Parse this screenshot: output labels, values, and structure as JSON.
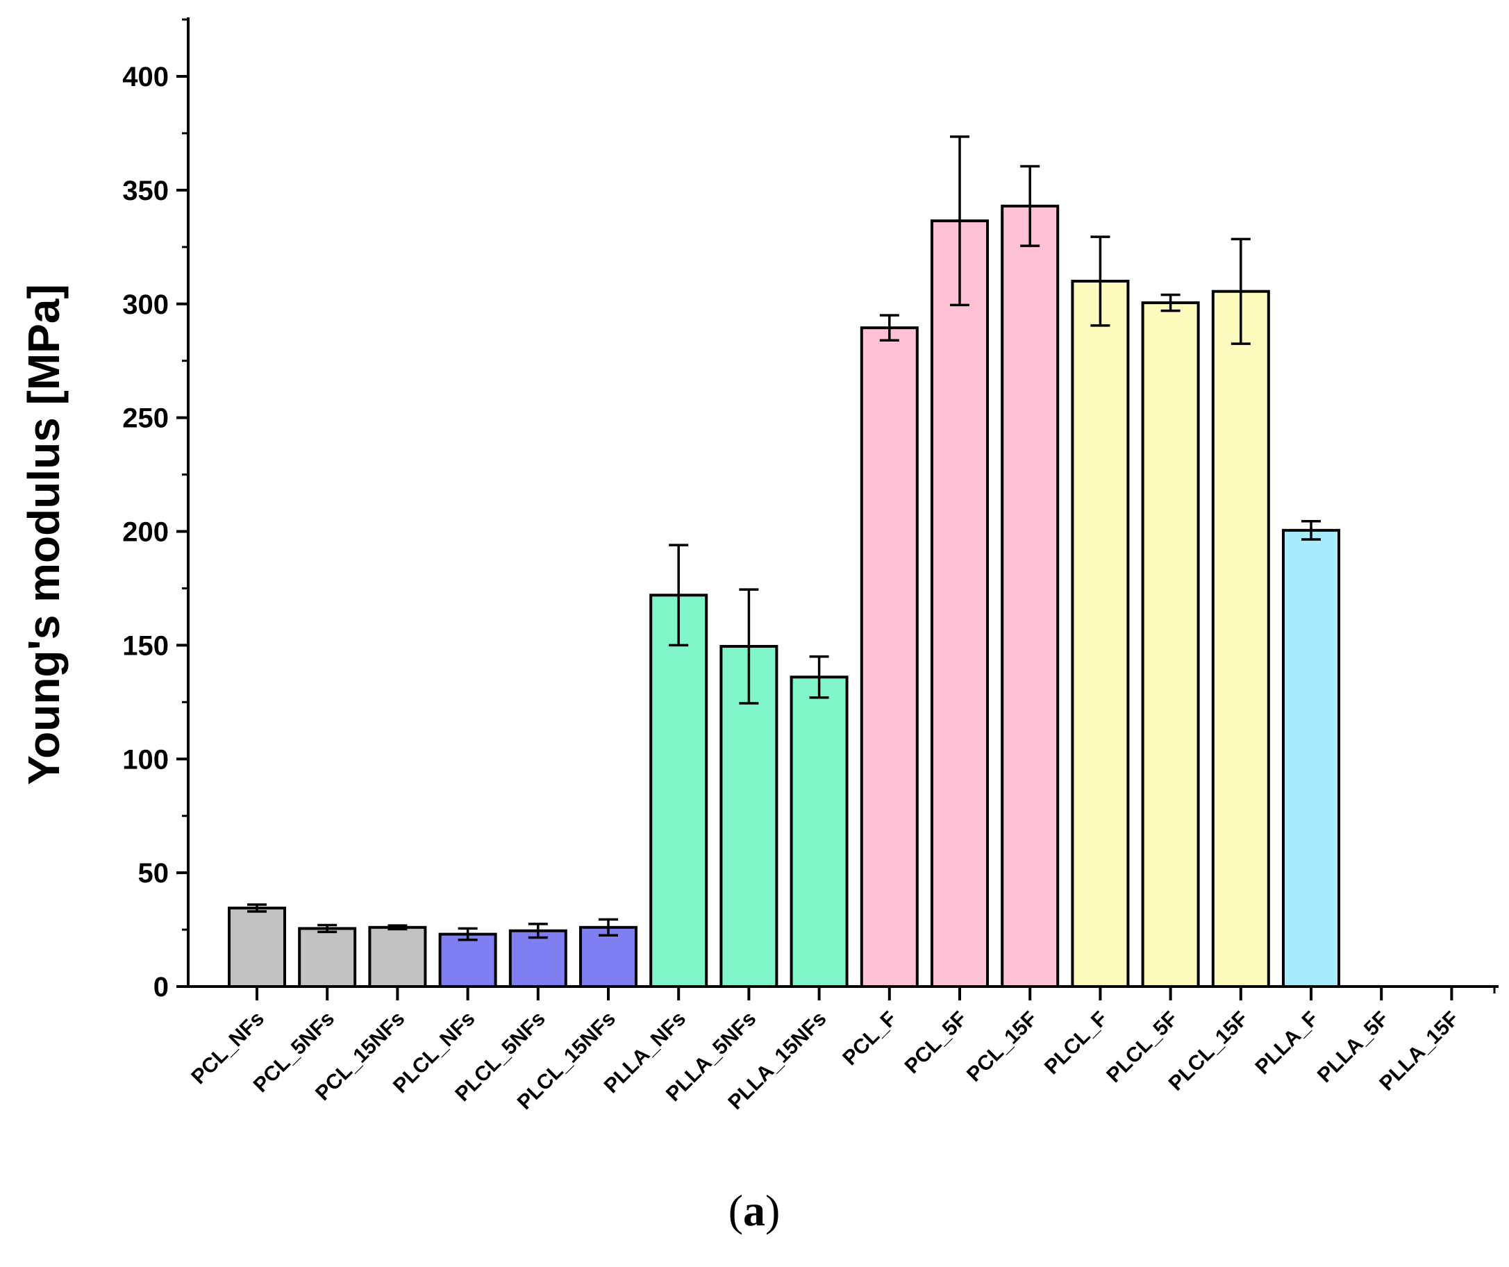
{
  "chart_data": {
    "type": "bar",
    "title": "",
    "xlabel": "",
    "ylabel": "Young's modulus [MPa]",
    "ylim": [
      0,
      425
    ],
    "yticks": [
      0,
      50,
      100,
      150,
      200,
      250,
      300,
      350,
      400
    ],
    "grid": false,
    "categories": [
      "PCL_NFs",
      "PCL_5NFs",
      "PCL_15NFs",
      "PLCL_NFs",
      "PLCL_5NFs",
      "PLCL_15NFs",
      "PLLA_NFs",
      "PLLA_5NFs",
      "PLLA_15NFs",
      "PCL_F",
      "PCL_5F",
      "PCL_15F",
      "PLCL_F",
      "PLCL_5F",
      "PLCL_15F",
      "PLLA_F",
      "PLLA_5F",
      "PLLA_15F"
    ],
    "values": [
      34.5,
      25.5,
      26,
      23,
      24.5,
      26,
      172,
      149.5,
      136,
      289.5,
      336.5,
      343,
      310,
      300.5,
      305.5,
      200.5,
      null,
      null
    ],
    "errors": [
      1.5,
      1.5,
      0.8,
      2.5,
      3,
      3.5,
      22,
      25,
      9,
      5.5,
      37,
      17.5,
      19.5,
      3.5,
      23,
      4,
      null,
      null
    ],
    "colors": [
      "#c2c2c2",
      "#c2c2c2",
      "#c2c2c2",
      "#7f7ff2",
      "#7f7ff2",
      "#7f7ff2",
      "#80f5c8",
      "#80f5c8",
      "#80f5c8",
      "#ffc1d6",
      "#ffc1d6",
      "#ffc1d6",
      "#fdfcbe",
      "#fdfcbe",
      "#fdfcbe",
      "#a6ecfa",
      "#a6ecfa",
      "#a6ecfa"
    ]
  },
  "caption": {
    "open": "(",
    "letter": "a",
    "close": ")"
  }
}
